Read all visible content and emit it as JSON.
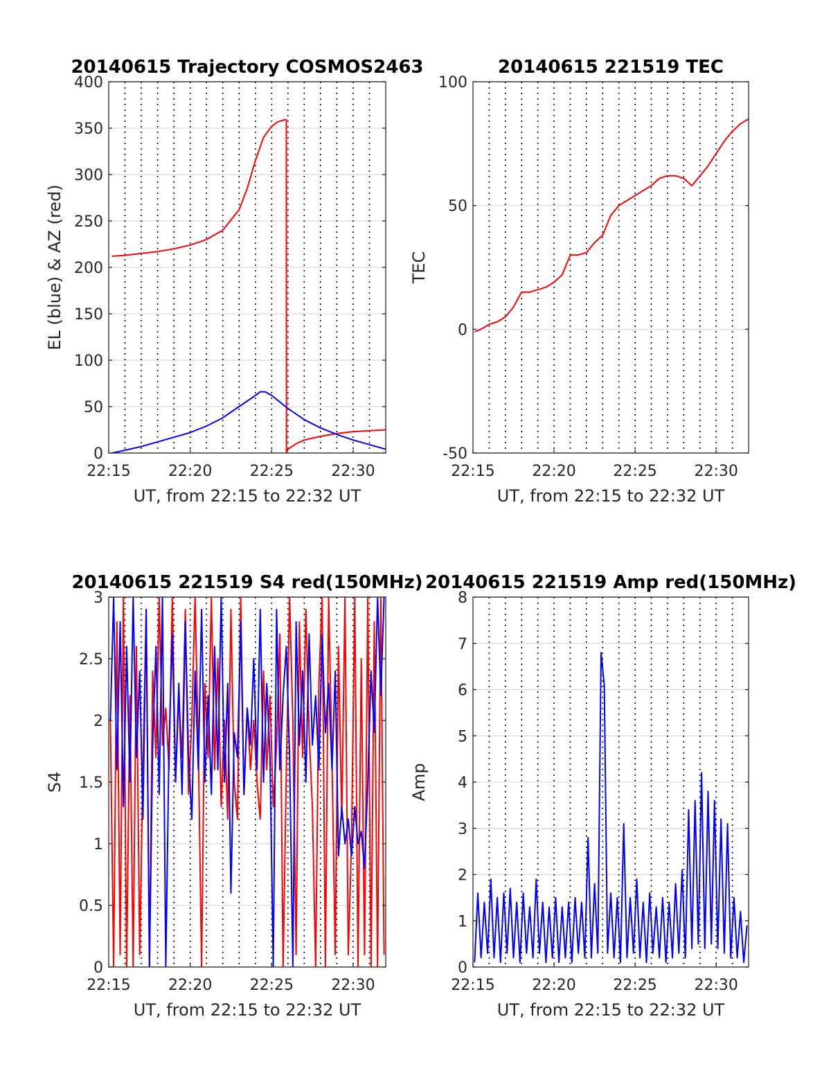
{
  "chart_data": [
    {
      "type": "line",
      "title": "20140615 Trajectory COSMOS2463",
      "xlabel": "UT, from 22:15 to 22:32 UT",
      "ylabel": "EL (blue) & AZ (red)",
      "xlim": [
        0,
        17
      ],
      "ylim": [
        0,
        400
      ],
      "xticks": [
        0,
        5,
        10,
        15
      ],
      "xtick_labels": [
        "22:15",
        "22:20",
        "22:25",
        "22:30"
      ],
      "yticks": [
        0,
        50,
        100,
        150,
        200,
        250,
        300,
        350,
        400
      ],
      "ytick_labels": [
        "0",
        "50",
        "100",
        "150",
        "200",
        "250",
        "300",
        "350",
        "400"
      ],
      "grid": true,
      "series": [
        {
          "color": "#ff0000",
          "x": [
            0.2,
            1,
            2,
            3,
            4,
            5,
            6,
            7,
            8,
            8.5,
            9,
            9.5,
            10,
            10.4,
            10.8,
            10.9,
            10.91,
            11,
            11.5,
            12,
            13,
            14,
            15,
            16,
            17
          ],
          "y": [
            212,
            213,
            215,
            217,
            220,
            224,
            230,
            240,
            262,
            285,
            315,
            340,
            352,
            357,
            359,
            359,
            0,
            4,
            10,
            14,
            18,
            21,
            23,
            24,
            25
          ]
        },
        {
          "color": "#0000ff",
          "x": [
            0.2,
            1,
            2,
            3,
            4,
            5,
            6,
            7,
            8,
            8.5,
            9,
            9.3,
            9.6,
            10,
            10.5,
            11,
            12,
            13,
            14,
            15,
            16,
            17
          ],
          "y": [
            0,
            3,
            7,
            12,
            17,
            22,
            29,
            38,
            50,
            56,
            62,
            66,
            66,
            62,
            55,
            48,
            36,
            27,
            20,
            14,
            9,
            4
          ]
        }
      ]
    },
    {
      "type": "line",
      "title": "20140615 221519 TEC",
      "xlabel": "UT, from 22:15 to 22:32 UT",
      "ylabel": "TEC",
      "xlim": [
        0,
        17
      ],
      "ylim": [
        -50,
        100
      ],
      "xticks": [
        0,
        5,
        10,
        15
      ],
      "xtick_labels": [
        "22:15",
        "22:20",
        "22:25",
        "22:30"
      ],
      "yticks": [
        -50,
        0,
        50,
        100
      ],
      "ytick_labels": [
        "-50",
        "0",
        "50",
        "100"
      ],
      "grid": true,
      "series": [
        {
          "color": "#ff0000",
          "x": [
            0.1,
            0.5,
            1,
            1.5,
            2,
            2.5,
            3,
            3.5,
            4,
            4.5,
            5,
            5.5,
            6,
            6.5,
            7,
            7.5,
            8,
            8.5,
            9,
            9.5,
            10,
            10.5,
            11,
            11.5,
            12,
            12.5,
            13,
            13.5,
            14,
            14.5,
            15,
            15.5,
            16,
            16.5,
            17
          ],
          "y": [
            -1,
            0,
            2,
            3,
            5,
            9,
            15,
            15,
            16,
            17,
            19,
            22,
            30,
            30,
            31,
            35,
            38,
            46,
            50,
            52,
            54,
            56,
            58,
            61,
            62,
            62,
            61,
            58,
            62,
            66,
            71,
            76,
            80,
            83,
            85
          ]
        }
      ]
    },
    {
      "type": "line",
      "title": "20140615 221519 S4 red(150MHz)",
      "xlabel": "UT, from 22:15 to 22:32 UT",
      "ylabel": "S4",
      "xlim": [
        0,
        17
      ],
      "ylim": [
        0,
        3
      ],
      "xticks": [
        0,
        5,
        10,
        15
      ],
      "xtick_labels": [
        "22:15",
        "22:20",
        "22:25",
        "22:30"
      ],
      "yticks": [
        0,
        0.5,
        1,
        1.5,
        2,
        2.5,
        3
      ],
      "ytick_labels": [
        "0",
        "0.5",
        "1",
        "1.5",
        "2",
        "2.5",
        "3"
      ],
      "grid": true,
      "series": [
        {
          "color": "#ff0000",
          "x": [
            0.1,
            0.3,
            0.5,
            0.7,
            0.9,
            1.1,
            1.3,
            1.5,
            1.7,
            1.9,
            2.1,
            2.3,
            2.5,
            2.7,
            2.9,
            3.1,
            3.3,
            3.5,
            3.7,
            3.9,
            4.1,
            4.3,
            4.5,
            4.7,
            4.9,
            5.1,
            5.3,
            5.5,
            5.7,
            5.9,
            6.1,
            6.3,
            6.5,
            6.7,
            6.9,
            7.1,
            7.3,
            7.5,
            7.7,
            7.9,
            8.1,
            8.3,
            8.5,
            8.7,
            8.9,
            9.1,
            9.3,
            9.5,
            9.7,
            9.9,
            10.1,
            10.3,
            10.5,
            10.7,
            10.9,
            11.1,
            11.3,
            11.5,
            11.7,
            11.9,
            12.1,
            12.3,
            12.5,
            12.7,
            12.9,
            13.1,
            13.3,
            13.5,
            13.7,
            13.9,
            14.1,
            14.3,
            14.5,
            14.7,
            14.9,
            15.1,
            15.3,
            15.5,
            15.7,
            15.9,
            16.1,
            16.3,
            16.5,
            16.7,
            16.9
          ],
          "y": [
            2.0,
            0,
            2.8,
            0.1,
            3.0,
            0,
            2.2,
            0,
            2.6,
            0.1,
            1.6,
            2.9,
            0,
            2.4,
            1.7,
            3.0,
            1.8,
            2.1,
            1.6,
            3.0,
            1.5,
            2.2,
            1.7,
            2.9,
            1.4,
            2.0,
            3.0,
            1.8,
            0,
            2.3,
            1.7,
            3.0,
            1.6,
            2.5,
            1.3,
            2.0,
            1.2,
            2.9,
            1.5,
            1.2,
            3.0,
            1.4,
            2.1,
            1.6,
            2.0,
            1.5,
            1.2,
            2.4,
            1.6,
            2.2,
            1.3,
            1.8,
            2.7,
            0,
            1.6,
            3.0,
            2.0,
            0.1,
            2.8,
            1.7,
            2.9,
            1.9,
            1.3,
            0,
            2.3,
            3.0,
            0,
            3.0,
            1.7,
            0.1,
            2.6,
            1.2,
            3.0,
            0.1,
            1.0,
            3.0,
            0,
            2.5,
            0.1,
            3.0,
            0,
            2.8,
            0,
            3.0,
            0.1
          ]
        },
        {
          "color": "#0000ff",
          "x": [
            0.1,
            0.3,
            0.5,
            0.7,
            0.9,
            1.1,
            1.3,
            1.5,
            1.7,
            1.9,
            2.1,
            2.3,
            2.5,
            2.7,
            2.9,
            3.1,
            3.3,
            3.5,
            3.7,
            3.9,
            4.1,
            4.3,
            4.5,
            4.7,
            4.9,
            5.1,
            5.3,
            5.5,
            5.7,
            5.9,
            6.1,
            6.3,
            6.5,
            6.7,
            6.9,
            7.1,
            7.3,
            7.5,
            7.7,
            7.9,
            8.1,
            8.3,
            8.5,
            8.7,
            8.9,
            9.1,
            9.3,
            9.5,
            9.7,
            9.9,
            10.1,
            10.3,
            10.5,
            10.7,
            10.9,
            11.1,
            11.3,
            11.5,
            11.7,
            11.9,
            12.1,
            12.3,
            12.5,
            12.7,
            12.9,
            13.1,
            13.3,
            13.5,
            13.7,
            13.9,
            14.1,
            14.3,
            14.5,
            14.7,
            14.9,
            15.1,
            15.3,
            15.5,
            15.7,
            15.9,
            16.1,
            16.3,
            16.5,
            16.7,
            16.9
          ],
          "y": [
            2.0,
            3.0,
            1.6,
            2.8,
            1.3,
            2.6,
            1.5,
            3.0,
            1.7,
            2.4,
            1.2,
            2.9,
            0,
            1.8,
            2.6,
            1.4,
            3.0,
            0,
            1.8,
            2.7,
            1.5,
            2.3,
            1.4,
            2.8,
            1.7,
            1.2,
            2.4,
            1.6,
            2.9,
            1.5,
            2.2,
            1.4,
            2.6,
            1.6,
            3.0,
            1.5,
            2.3,
            0.6,
            1.9,
            1.7,
            2.8,
            1.4,
            2.1,
            1.8,
            2.5,
            1.6,
            2.9,
            1.5,
            2.3,
            1.7,
            0,
            2.9,
            1.6,
            2.2,
            2.6,
            1.7,
            0,
            2.8,
            1.8,
            2.4,
            1.5,
            2.7,
            1.8,
            2.2,
            1.6,
            2.7,
            1.9,
            2.3,
            1.6,
            2.4,
            0.9,
            1.3,
            1.0,
            1.2,
            0.9,
            1.3,
            1.0,
            1.1,
            0.8,
            1.5,
            2.4,
            1.9,
            3.0,
            2.2,
            3.0
          ]
        }
      ]
    },
    {
      "type": "line",
      "title": "20140615 221519 Amp red(150MHz)",
      "xlabel": "UT, from 22:15 to 22:32 UT",
      "ylabel": "Amp",
      "xlim": [
        0,
        17
      ],
      "ylim": [
        0,
        8
      ],
      "xticks": [
        0,
        5,
        10,
        15
      ],
      "xtick_labels": [
        "22:15",
        "22:20",
        "22:25",
        "22:30"
      ],
      "yticks": [
        0,
        1,
        2,
        3,
        4,
        5,
        6,
        7,
        8
      ],
      "ytick_labels": [
        "0",
        "1",
        "2",
        "3",
        "4",
        "5",
        "6",
        "7",
        "8"
      ],
      "grid": true,
      "series": [
        {
          "color": "#0000ff",
          "x": [
            0.1,
            0.3,
            0.5,
            0.7,
            0.9,
            1.1,
            1.3,
            1.5,
            1.7,
            1.9,
            2.1,
            2.3,
            2.5,
            2.7,
            2.9,
            3.1,
            3.3,
            3.5,
            3.7,
            3.9,
            4.1,
            4.3,
            4.5,
            4.7,
            4.9,
            5.1,
            5.3,
            5.5,
            5.7,
            5.9,
            6.1,
            6.3,
            6.5,
            6.7,
            6.9,
            7.1,
            7.3,
            7.5,
            7.7,
            7.9,
            8.1,
            8.3,
            8.5,
            8.7,
            8.9,
            9.1,
            9.3,
            9.5,
            9.7,
            9.9,
            10.1,
            10.3,
            10.5,
            10.7,
            10.9,
            11.1,
            11.3,
            11.5,
            11.7,
            11.9,
            12.1,
            12.3,
            12.5,
            12.7,
            12.9,
            13.1,
            13.3,
            13.5,
            13.7,
            13.9,
            14.1,
            14.3,
            14.5,
            14.7,
            14.9,
            15.1,
            15.3,
            15.5,
            15.7,
            15.9,
            16.1,
            16.3,
            16.5,
            16.7,
            16.9
          ],
          "y": [
            0.1,
            1.6,
            0.2,
            1.4,
            0.3,
            1.9,
            0.2,
            1.5,
            0.1,
            1.6,
            0.3,
            1.7,
            0.2,
            1.4,
            0.1,
            1.6,
            0.3,
            1.3,
            0.2,
            1.9,
            0.3,
            1.4,
            0.1,
            1.3,
            0.2,
            1.5,
            0.1,
            1.3,
            0.2,
            1.4,
            0.1,
            1.5,
            0.3,
            1.4,
            0.2,
            2.8,
            0.2,
            1.8,
            0.3,
            6.8,
            6.1,
            0.3,
            1.6,
            0.2,
            1.5,
            0.1,
            3.1,
            0.2,
            1.5,
            0.3,
            1.9,
            0.2,
            1.4,
            0.1,
            1.6,
            0.3,
            1.3,
            0.2,
            1.5,
            0.1,
            1.4,
            0.2,
            1.8,
            0.3,
            2.1,
            0.2,
            3.4,
            0.4,
            3.6,
            0.5,
            4.2,
            0.4,
            3.8,
            0.5,
            3.6,
            0.4,
            3.2,
            0.3,
            3.1,
            0.2,
            1.5,
            0.2,
            1.2,
            0.1,
            0.9
          ]
        }
      ]
    }
  ]
}
